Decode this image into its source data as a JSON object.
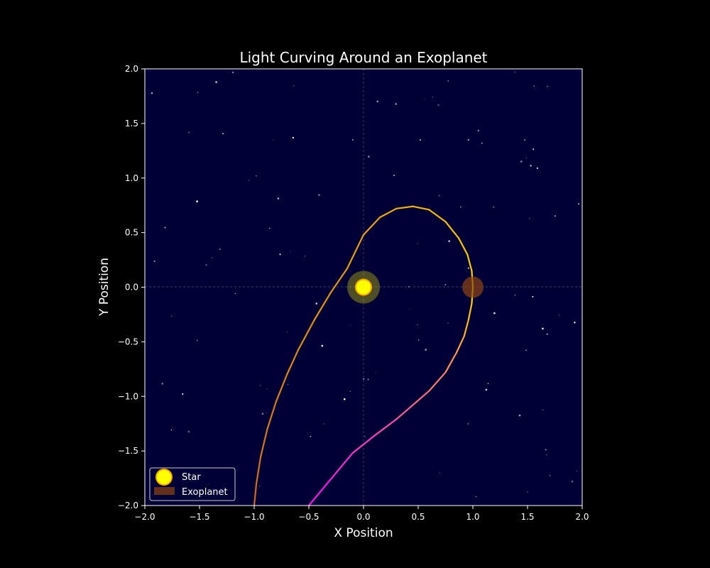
{
  "chart_data": {
    "type": "line",
    "title": "Light Curving Around an Exoplanet",
    "xlabel": "X Position",
    "ylabel": "Y Position",
    "xlim": [
      -2.0,
      2.0
    ],
    "ylim": [
      -2.0,
      2.0
    ],
    "xticks": [
      "−2.0",
      "−1.5",
      "−1.0",
      "−0.5",
      "0.0",
      "0.5",
      "1.0",
      "1.5",
      "2.0"
    ],
    "yticks": [
      "−2.0",
      "−1.5",
      "−1.0",
      "−0.5",
      "0.0",
      "0.5",
      "1.0",
      "1.5",
      "2.0"
    ],
    "grid": "dashed lines at x=0 and y=0",
    "legend_position": "lower-left",
    "colors": {
      "figure_bg": "#000000",
      "plot_bg": "#000037",
      "star_fill": "#ffff00",
      "star_edge": "#ffa500",
      "exoplanet": "#8b4513",
      "path_start": "#d2691e",
      "path_mid": "#ffd700",
      "path_end": "#ff00ff"
    },
    "objects": [
      {
        "name": "Star",
        "x": 0.0,
        "y": 0.0
      },
      {
        "name": "Exoplanet",
        "x": 1.0,
        "y": 0.0
      }
    ],
    "light_path": {
      "x": [
        -1.0,
        -0.98,
        -0.94,
        -0.88,
        -0.8,
        -0.7,
        -0.6,
        -0.45,
        -0.3,
        -0.15,
        0.0,
        0.15,
        0.3,
        0.45,
        0.6,
        0.75,
        0.87,
        0.95,
        0.99,
        1.0,
        0.99,
        0.96,
        0.92,
        0.85,
        0.75,
        0.6,
        0.45,
        0.3,
        0.1,
        -0.1,
        -0.3,
        -0.5
      ],
      "y": [
        -2.0,
        -1.8,
        -1.55,
        -1.3,
        -1.05,
        -0.8,
        -0.58,
        -0.3,
        -0.05,
        0.17,
        0.48,
        0.64,
        0.72,
        0.74,
        0.71,
        0.6,
        0.45,
        0.3,
        0.15,
        0.0,
        -0.15,
        -0.3,
        -0.45,
        -0.6,
        -0.78,
        -0.95,
        -1.08,
        -1.21,
        -1.36,
        -1.52,
        -1.76,
        -2.0
      ]
    },
    "legend": [
      "Star",
      "Exoplanet"
    ]
  }
}
